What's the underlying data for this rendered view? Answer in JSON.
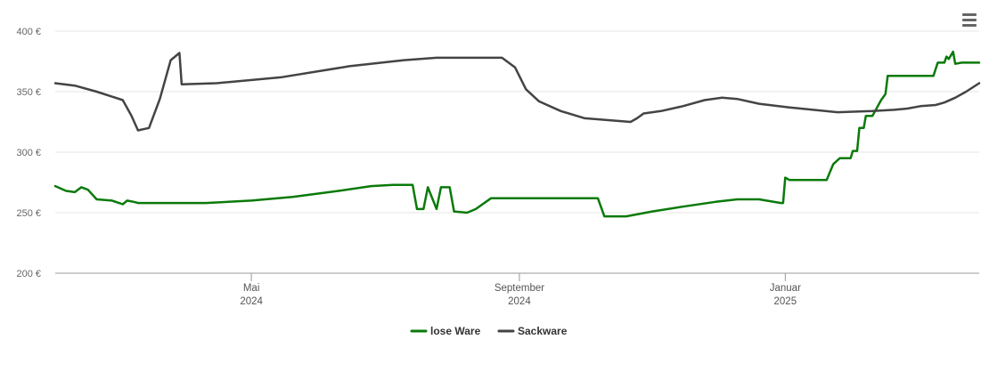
{
  "chart_data": {
    "type": "line",
    "title": "",
    "xlabel": "",
    "ylabel": "",
    "ylim": [
      200,
      400
    ],
    "yticks": [
      {
        "value": 200,
        "label": "200 €"
      },
      {
        "value": 250,
        "label": "250 €"
      },
      {
        "value": 300,
        "label": "300 €"
      },
      {
        "value": 350,
        "label": "350 €"
      },
      {
        "value": 400,
        "label": "400 €"
      }
    ],
    "xlim": [
      "2024-02-01",
      "2025-03-31"
    ],
    "xticks": [
      {
        "date": "2024-05-01",
        "label": [
          "Mai",
          "2024"
        ]
      },
      {
        "date": "2024-09-01",
        "label": [
          "September",
          "2024"
        ]
      },
      {
        "date": "2025-01-01",
        "label": [
          "Januar",
          "2025"
        ]
      }
    ],
    "grid": true,
    "legend_position": "bottom-center",
    "series": [
      {
        "name": "lose Ware",
        "color": "#0a7a0a",
        "points": [
          [
            "2024-02-01",
            272
          ],
          [
            "2024-02-06",
            268
          ],
          [
            "2024-02-10",
            267
          ],
          [
            "2024-02-13",
            271
          ],
          [
            "2024-02-16",
            269
          ],
          [
            "2024-02-20",
            261
          ],
          [
            "2024-02-27",
            260
          ],
          [
            "2024-03-03",
            257
          ],
          [
            "2024-03-05",
            260
          ],
          [
            "2024-03-08",
            259
          ],
          [
            "2024-03-10",
            258
          ],
          [
            "2024-04-10",
            258
          ],
          [
            "2024-05-01",
            260
          ],
          [
            "2024-05-20",
            263
          ],
          [
            "2024-06-10",
            268
          ],
          [
            "2024-06-25",
            272
          ],
          [
            "2024-07-05",
            273
          ],
          [
            "2024-07-14",
            273
          ],
          [
            "2024-07-16",
            253
          ],
          [
            "2024-07-19",
            253
          ],
          [
            "2024-07-21",
            271
          ],
          [
            "2024-07-23",
            262
          ],
          [
            "2024-07-25",
            253
          ],
          [
            "2024-07-27",
            271
          ],
          [
            "2024-07-31",
            271
          ],
          [
            "2024-08-02",
            251
          ],
          [
            "2024-08-08",
            250
          ],
          [
            "2024-08-12",
            253
          ],
          [
            "2024-08-19",
            262
          ],
          [
            "2024-08-25",
            262
          ],
          [
            "2024-10-07",
            262
          ],
          [
            "2024-10-10",
            247
          ],
          [
            "2024-10-20",
            247
          ],
          [
            "2024-11-01",
            251
          ],
          [
            "2024-11-15",
            255
          ],
          [
            "2024-11-30",
            259
          ],
          [
            "2024-12-10",
            261
          ],
          [
            "2024-12-20",
            261
          ],
          [
            "2024-12-30",
            258
          ],
          [
            "2024-12-31",
            258
          ],
          [
            "2025-01-01",
            279
          ],
          [
            "2025-01-03",
            277
          ],
          [
            "2025-01-20",
            277
          ],
          [
            "2025-01-23",
            290
          ],
          [
            "2025-01-26",
            295
          ],
          [
            "2025-01-31",
            295
          ],
          [
            "2025-02-01",
            301
          ],
          [
            "2025-02-03",
            301
          ],
          [
            "2025-02-04",
            320
          ],
          [
            "2025-02-06",
            320
          ],
          [
            "2025-02-07",
            330
          ],
          [
            "2025-02-10",
            330
          ],
          [
            "2025-02-14",
            343
          ],
          [
            "2025-02-16",
            348
          ],
          [
            "2025-02-17",
            363
          ],
          [
            "2025-03-10",
            363
          ],
          [
            "2025-03-12",
            374
          ],
          [
            "2025-03-15",
            374
          ],
          [
            "2025-03-16",
            379
          ],
          [
            "2025-03-17",
            377
          ],
          [
            "2025-03-19",
            383
          ],
          [
            "2025-03-20",
            373
          ],
          [
            "2025-03-23",
            374
          ],
          [
            "2025-03-31",
            374
          ]
        ]
      },
      {
        "name": "Sackware",
        "color": "#444444",
        "points": [
          [
            "2024-02-01",
            357
          ],
          [
            "2024-02-10",
            355
          ],
          [
            "2024-02-20",
            350
          ],
          [
            "2024-03-03",
            343
          ],
          [
            "2024-03-07",
            330
          ],
          [
            "2024-03-10",
            318
          ],
          [
            "2024-03-15",
            320
          ],
          [
            "2024-03-20",
            344
          ],
          [
            "2024-03-25",
            376
          ],
          [
            "2024-03-29",
            382
          ],
          [
            "2024-03-30",
            356
          ],
          [
            "2024-04-15",
            357
          ],
          [
            "2024-05-15",
            362
          ],
          [
            "2024-06-15",
            371
          ],
          [
            "2024-07-10",
            376
          ],
          [
            "2024-07-25",
            378
          ],
          [
            "2024-08-10",
            378
          ],
          [
            "2024-08-24",
            378
          ],
          [
            "2024-08-30",
            370
          ],
          [
            "2024-09-04",
            352
          ],
          [
            "2024-09-10",
            342
          ],
          [
            "2024-09-20",
            334
          ],
          [
            "2024-10-01",
            328
          ],
          [
            "2024-10-15",
            326
          ],
          [
            "2024-10-22",
            325
          ],
          [
            "2024-10-25",
            328
          ],
          [
            "2024-10-28",
            332
          ],
          [
            "2024-11-05",
            334
          ],
          [
            "2024-11-15",
            338
          ],
          [
            "2024-11-25",
            343
          ],
          [
            "2024-12-03",
            345
          ],
          [
            "2024-12-10",
            344
          ],
          [
            "2024-12-20",
            340
          ],
          [
            "2025-01-03",
            337
          ],
          [
            "2025-01-25",
            333
          ],
          [
            "2025-02-10",
            334
          ],
          [
            "2025-02-20",
            335
          ],
          [
            "2025-02-26",
            336
          ],
          [
            "2025-03-04",
            338
          ],
          [
            "2025-03-11",
            339
          ],
          [
            "2025-03-15",
            341
          ],
          [
            "2025-03-20",
            345
          ],
          [
            "2025-03-25",
            350
          ],
          [
            "2025-03-31",
            357
          ]
        ]
      }
    ]
  },
  "legend": {
    "items": [
      {
        "label": "lose Ware",
        "color": "#0a7a0a"
      },
      {
        "label": "Sackware",
        "color": "#444444"
      }
    ]
  },
  "menu": {
    "icon": "hamburger-menu-icon"
  }
}
